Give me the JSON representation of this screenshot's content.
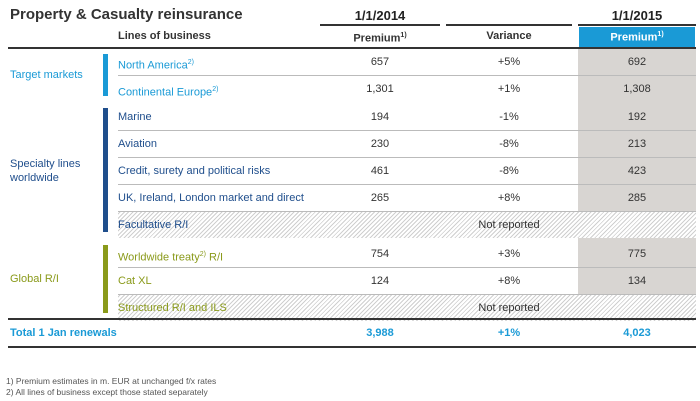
{
  "title": "Property & Casualty reinsurance",
  "headers": {
    "date_2014": "1/1/2014",
    "date_2015": "1/1/2015",
    "lines": "Lines of business",
    "premium": "Premium",
    "premium_sup": "1)",
    "variance": "Variance"
  },
  "colors": {
    "target": "#1a9ad6",
    "specialty": "#1f4e8c",
    "global": "#8a9a1a",
    "highlight": "#1a9ad6",
    "grey": "#d8d5d2"
  },
  "groups": {
    "target": "Target markets",
    "specialty": "Specialty lines worldwide",
    "global": "Global R/I"
  },
  "rows": [
    {
      "line": "North America",
      "sup": "2)",
      "p2014": "657",
      "var": "+5%",
      "p2015": "692"
    },
    {
      "line": "Continental Europe",
      "sup": "2)",
      "p2014": "1,301",
      "var": "+1%",
      "p2015": "1,308"
    },
    {
      "line": "Marine",
      "p2014": "194",
      "var": "-1%",
      "p2015": "192"
    },
    {
      "line": "Aviation",
      "p2014": "230",
      "var": "-8%",
      "p2015": "213"
    },
    {
      "line": "Credit, surety and political risks",
      "p2014": "461",
      "var": "-8%",
      "p2015": "423"
    },
    {
      "line": "UK, Ireland, London market and direct",
      "p2014": "265",
      "var": "+8%",
      "p2015": "285"
    },
    {
      "line": "Facultative R/I",
      "var": "Not reported"
    },
    {
      "line": "Worldwide treaty",
      "sup": "2)",
      "line_suffix": " R/I",
      "p2014": "754",
      "var": "+3%",
      "p2015": "775"
    },
    {
      "line": "Cat XL",
      "p2014": "124",
      "var": "+8%",
      "p2015": "134"
    },
    {
      "line": "Structured R/I and ILS",
      "var": "Not reported"
    }
  ],
  "total": {
    "label": "Total 1 Jan renewals",
    "p2014": "3,988",
    "var": "+1%",
    "p2015": "4,023"
  },
  "footnotes": [
    "1) Premium estimates in m. EUR at unchanged f/x rates",
    "2) All lines of business except those stated separately"
  ]
}
